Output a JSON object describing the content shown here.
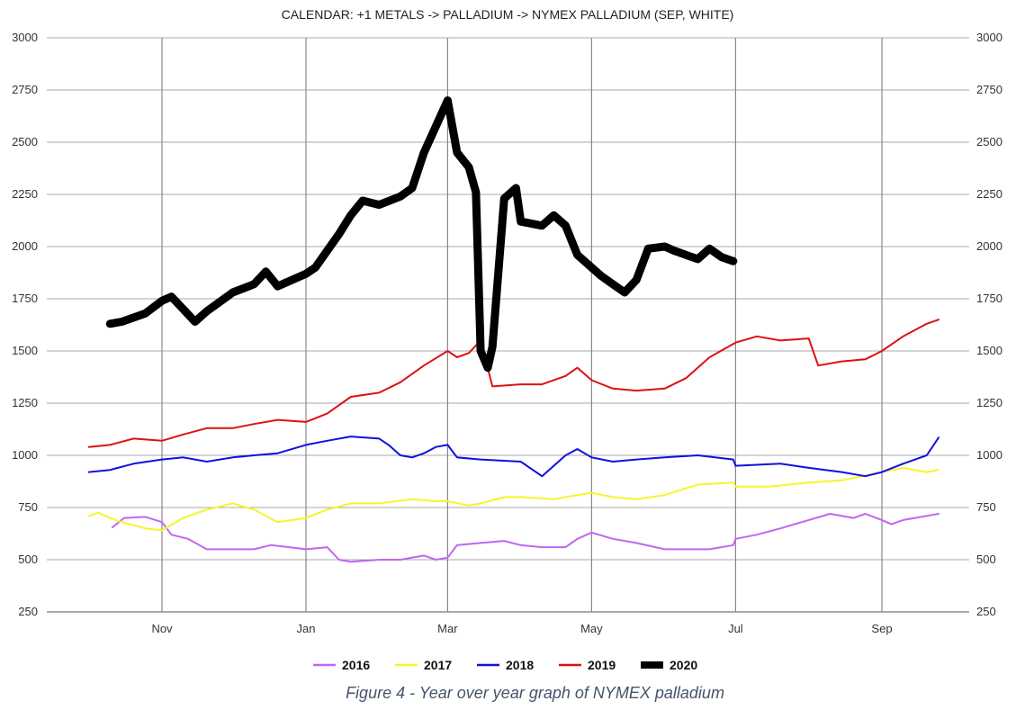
{
  "caption": "Figure 4 - Year over year graph of NYMEX palladium",
  "chart_data": {
    "type": "line",
    "title": "CALENDAR: +1 METALS -> PALLADIUM -> NYMEX PALLADIUM (SEP, WHITE)",
    "xlabel": "",
    "ylabel": "",
    "x_axis": "calendar month (season from Oct through mid-Sep)",
    "x_ticks": [
      "Nov",
      "Jan",
      "Mar",
      "May",
      "Jul",
      "Sep"
    ],
    "ylim": [
      250,
      3000
    ],
    "y_ticks": [
      250,
      500,
      750,
      1000,
      1250,
      1500,
      1750,
      2000,
      2250,
      2500,
      2750,
      3000
    ],
    "y_axis_both_sides": true,
    "grid": true,
    "legend_position": "bottom",
    "series": [
      {
        "name": "2016",
        "color": "#c066f0",
        "width": 2,
        "points": [
          [
            "Oct 11",
            655
          ],
          [
            "Oct 16",
            700
          ],
          [
            "Oct 25",
            705
          ],
          [
            "Nov 1",
            680
          ],
          [
            "Nov 5",
            620
          ],
          [
            "Nov 12",
            600
          ],
          [
            "Nov 20",
            550
          ],
          [
            "Dec 1",
            550
          ],
          [
            "Dec 10",
            550
          ],
          [
            "Dec 17",
            570
          ],
          [
            "Dec 25",
            560
          ],
          [
            "Jan 1",
            550
          ],
          [
            "Jan 10",
            560
          ],
          [
            "Jan 15",
            500
          ],
          [
            "Jan 20",
            490
          ],
          [
            "Feb 1",
            500
          ],
          [
            "Feb 10",
            500
          ],
          [
            "Feb 20",
            520
          ],
          [
            "Feb 25",
            500
          ],
          [
            "Mar 1",
            510
          ],
          [
            "Mar 5",
            570
          ],
          [
            "Mar 15",
            580
          ],
          [
            "Mar 25",
            590
          ],
          [
            "Apr 1",
            570
          ],
          [
            "Apr 10",
            560
          ],
          [
            "Apr 20",
            560
          ],
          [
            "Apr 25",
            600
          ],
          [
            "May 1",
            630
          ],
          [
            "May 10",
            600
          ],
          [
            "May 20",
            580
          ],
          [
            "Jun 1",
            550
          ],
          [
            "Jun 10",
            550
          ],
          [
            "Jun 20",
            550
          ],
          [
            "Jun 30",
            570
          ],
          [
            "Jul 1",
            600
          ],
          [
            "Jul 10",
            620
          ],
          [
            "Jul 20",
            650
          ],
          [
            "Aug 1",
            690
          ],
          [
            "Aug 10",
            720
          ],
          [
            "Aug 20",
            700
          ],
          [
            "Aug 25",
            720
          ],
          [
            "Sep 1",
            690
          ],
          [
            "Sep 5",
            670
          ],
          [
            "Sep 10",
            690
          ],
          [
            "Sep 20",
            710
          ],
          [
            "Sep 25",
            720
          ]
        ]
      },
      {
        "name": "2017",
        "color": "#f5f52a",
        "width": 2,
        "points": [
          [
            "Oct 1",
            710
          ],
          [
            "Oct 5",
            725
          ],
          [
            "Oct 10",
            700
          ],
          [
            "Oct 15",
            680
          ],
          [
            "Oct 25",
            650
          ],
          [
            "Nov 1",
            640
          ],
          [
            "Nov 10",
            700
          ],
          [
            "Nov 20",
            740
          ],
          [
            "Dec 1",
            770
          ],
          [
            "Dec 10",
            740
          ],
          [
            "Dec 20",
            680
          ],
          [
            "Jan 1",
            700
          ],
          [
            "Jan 10",
            740
          ],
          [
            "Jan 20",
            770
          ],
          [
            "Feb 1",
            770
          ],
          [
            "Feb 15",
            790
          ],
          [
            "Feb 25",
            780
          ],
          [
            "Mar 1",
            780
          ],
          [
            "Mar 10",
            760
          ],
          [
            "Mar 15",
            770
          ],
          [
            "Mar 25",
            800
          ],
          [
            "Apr 1",
            800
          ],
          [
            "Apr 15",
            790
          ],
          [
            "Apr 25",
            810
          ],
          [
            "May 1",
            820
          ],
          [
            "May 10",
            800
          ],
          [
            "May 20",
            790
          ],
          [
            "Jun 1",
            810
          ],
          [
            "Jun 15",
            860
          ],
          [
            "Jun 30",
            870
          ],
          [
            "Jul 1",
            850
          ],
          [
            "Jul 15",
            850
          ],
          [
            "Aug 1",
            870
          ],
          [
            "Aug 15",
            880
          ],
          [
            "Sep 1",
            920
          ],
          [
            "Sep 10",
            940
          ],
          [
            "Sep 20",
            920
          ],
          [
            "Sep 25",
            930
          ]
        ]
      },
      {
        "name": "2018",
        "color": "#1010e0",
        "width": 2,
        "points": [
          [
            "Oct 1",
            920
          ],
          [
            "Oct 10",
            930
          ],
          [
            "Oct 20",
            960
          ],
          [
            "Nov 1",
            980
          ],
          [
            "Nov 10",
            990
          ],
          [
            "Nov 20",
            970
          ],
          [
            "Dec 1",
            990
          ],
          [
            "Dec 10",
            1000
          ],
          [
            "Dec 20",
            1010
          ],
          [
            "Jan 1",
            1050
          ],
          [
            "Jan 10",
            1070
          ],
          [
            "Jan 20",
            1090
          ],
          [
            "Feb 1",
            1080
          ],
          [
            "Feb 5",
            1050
          ],
          [
            "Feb 10",
            1000
          ],
          [
            "Feb 15",
            990
          ],
          [
            "Feb 20",
            1010
          ],
          [
            "Feb 25",
            1040
          ],
          [
            "Mar 1",
            1050
          ],
          [
            "Mar 5",
            990
          ],
          [
            "Mar 15",
            980
          ],
          [
            "Apr 1",
            970
          ],
          [
            "Apr 10",
            900
          ],
          [
            "Apr 20",
            1000
          ],
          [
            "Apr 25",
            1030
          ],
          [
            "May 1",
            990
          ],
          [
            "May 10",
            970
          ],
          [
            "May 20",
            980
          ],
          [
            "Jun 1",
            990
          ],
          [
            "Jun 15",
            1000
          ],
          [
            "Jun 30",
            980
          ],
          [
            "Jul 1",
            950
          ],
          [
            "Jul 20",
            960
          ],
          [
            "Aug 1",
            940
          ],
          [
            "Aug 15",
            920
          ],
          [
            "Aug 25",
            900
          ],
          [
            "Sep 1",
            920
          ],
          [
            "Sep 10",
            960
          ],
          [
            "Sep 20",
            1000
          ],
          [
            "Sep 25",
            1085
          ]
        ]
      },
      {
        "name": "2019",
        "color": "#dd1111",
        "width": 2,
        "points": [
          [
            "Oct 1",
            1040
          ],
          [
            "Oct 10",
            1050
          ],
          [
            "Oct 20",
            1080
          ],
          [
            "Nov 1",
            1070
          ],
          [
            "Nov 10",
            1100
          ],
          [
            "Nov 20",
            1130
          ],
          [
            "Dec 1",
            1130
          ],
          [
            "Dec 10",
            1150
          ],
          [
            "Dec 20",
            1170
          ],
          [
            "Jan 1",
            1160
          ],
          [
            "Jan 10",
            1200
          ],
          [
            "Jan 20",
            1280
          ],
          [
            "Feb 1",
            1300
          ],
          [
            "Feb 10",
            1350
          ],
          [
            "Feb 20",
            1430
          ],
          [
            "Mar 1",
            1500
          ],
          [
            "Mar 5",
            1470
          ],
          [
            "Mar 10",
            1490
          ],
          [
            "Mar 15",
            1550
          ],
          [
            "Mar 20",
            1330
          ],
          [
            "Apr 1",
            1340
          ],
          [
            "Apr 10",
            1340
          ],
          [
            "Apr 20",
            1380
          ],
          [
            "Apr 25",
            1420
          ],
          [
            "May 1",
            1360
          ],
          [
            "May 10",
            1320
          ],
          [
            "May 20",
            1310
          ],
          [
            "Jun 1",
            1320
          ],
          [
            "Jun 10",
            1370
          ],
          [
            "Jun 20",
            1470
          ],
          [
            "Jul 1",
            1540
          ],
          [
            "Jul 10",
            1570
          ],
          [
            "Jul 20",
            1550
          ],
          [
            "Aug 1",
            1560
          ],
          [
            "Aug 5",
            1430
          ],
          [
            "Aug 15",
            1450
          ],
          [
            "Aug 25",
            1460
          ],
          [
            "Sep 1",
            1500
          ],
          [
            "Sep 10",
            1570
          ],
          [
            "Sep 20",
            1630
          ],
          [
            "Sep 25",
            1650
          ]
        ]
      },
      {
        "name": "2020",
        "color": "#000000",
        "width": 9,
        "points": [
          [
            "Oct 10",
            1630
          ],
          [
            "Oct 15",
            1640
          ],
          [
            "Oct 25",
            1680
          ],
          [
            "Nov 1",
            1740
          ],
          [
            "Nov 5",
            1760
          ],
          [
            "Nov 10",
            1700
          ],
          [
            "Nov 15",
            1640
          ],
          [
            "Nov 20",
            1690
          ],
          [
            "Dec 1",
            1780
          ],
          [
            "Dec 10",
            1820
          ],
          [
            "Dec 15",
            1880
          ],
          [
            "Dec 20",
            1810
          ],
          [
            "Jan 1",
            1870
          ],
          [
            "Jan 5",
            1900
          ],
          [
            "Jan 10",
            1980
          ],
          [
            "Jan 15",
            2060
          ],
          [
            "Jan 20",
            2150
          ],
          [
            "Jan 25",
            2220
          ],
          [
            "Feb 1",
            2200
          ],
          [
            "Feb 10",
            2240
          ],
          [
            "Feb 15",
            2280
          ],
          [
            "Feb 20",
            2450
          ],
          [
            "Mar 1",
            2700
          ],
          [
            "Mar 5",
            2450
          ],
          [
            "Mar 10",
            2380
          ],
          [
            "Mar 13",
            2260
          ],
          [
            "Mar 15",
            1500
          ],
          [
            "Mar 18",
            1420
          ],
          [
            "Mar 20",
            1520
          ],
          [
            "Mar 25",
            2230
          ],
          [
            "Mar 30",
            2280
          ],
          [
            "Apr 1",
            2120
          ],
          [
            "Apr 10",
            2100
          ],
          [
            "Apr 15",
            2150
          ],
          [
            "Apr 20",
            2100
          ],
          [
            "Apr 25",
            1960
          ],
          [
            "May 1",
            1900
          ],
          [
            "May 5",
            1860
          ],
          [
            "May 10",
            1820
          ],
          [
            "May 15",
            1780
          ],
          [
            "May 20",
            1840
          ],
          [
            "May 25",
            1990
          ],
          [
            "Jun 1",
            2000
          ],
          [
            "Jun 5",
            1980
          ],
          [
            "Jun 10",
            1960
          ],
          [
            "Jun 15",
            1940
          ],
          [
            "Jun 20",
            1990
          ],
          [
            "Jun 25",
            1950
          ],
          [
            "Jun 30",
            1930
          ]
        ]
      }
    ]
  }
}
